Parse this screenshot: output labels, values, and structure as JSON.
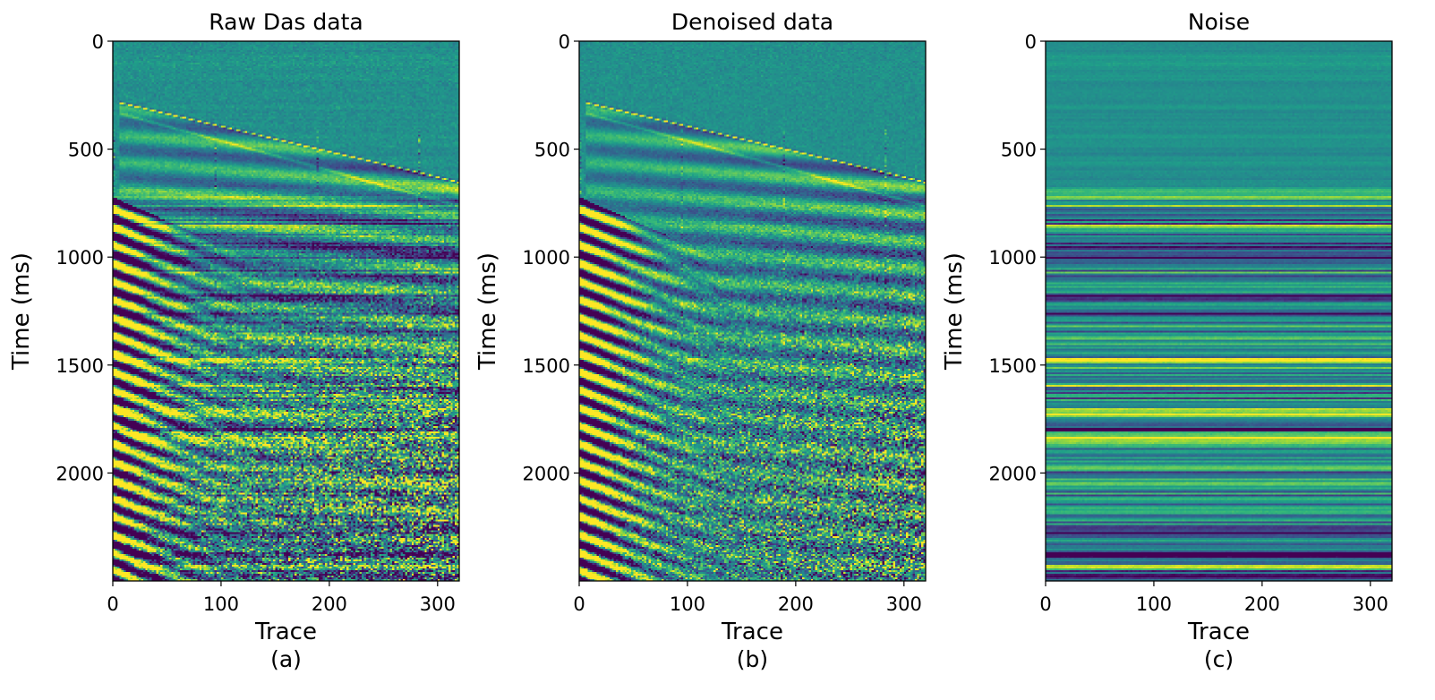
{
  "chart_data": [
    {
      "type": "heatmap",
      "title": "Raw Das data",
      "xlabel": "Trace",
      "ylabel": "Time (ms)",
      "caption": "(a)",
      "xlim": [
        0,
        320
      ],
      "ylim": [
        2500,
        0
      ],
      "x_ticks": [
        0,
        100,
        200,
        300
      ],
      "y_ticks": [
        0,
        500,
        1000,
        1500,
        2000
      ],
      "colormap": "viridis",
      "color_range": [
        -1,
        1
      ],
      "content": "seismic",
      "events": [
        {
          "kind": "direct-arrival",
          "trace": [
            5,
            320
          ],
          "time_ms": [
            280,
            650
          ]
        },
        {
          "kind": "weak-arrival",
          "trace": [
            5,
            320
          ],
          "time_ms": [
            330,
            760
          ]
        },
        {
          "kind": "surface-waves",
          "trace": [
            0,
            60
          ],
          "time_ms": [
            720,
            2500
          ]
        }
      ],
      "noise_level": 0.9,
      "horizontal_noise": 0.35
    },
    {
      "type": "heatmap",
      "title": "Denoised data",
      "xlabel": "Trace",
      "ylabel": "Time (ms)",
      "caption": "(b)",
      "xlim": [
        0,
        320
      ],
      "ylim": [
        2500,
        0
      ],
      "x_ticks": [
        0,
        100,
        200,
        300
      ],
      "y_ticks": [
        0,
        500,
        1000,
        1500,
        2000
      ],
      "colormap": "viridis",
      "color_range": [
        -1,
        1
      ],
      "content": "seismic",
      "events": [
        {
          "kind": "direct-arrival",
          "trace": [
            5,
            320
          ],
          "time_ms": [
            280,
            650
          ]
        },
        {
          "kind": "weak-arrival",
          "trace": [
            5,
            320
          ],
          "time_ms": [
            330,
            760
          ]
        },
        {
          "kind": "surface-waves",
          "trace": [
            0,
            60
          ],
          "time_ms": [
            720,
            2500
          ]
        }
      ],
      "noise_level": 0.8,
      "horizontal_noise": 0.05
    },
    {
      "type": "heatmap",
      "title": "Noise",
      "xlabel": "Trace",
      "ylabel": "Time (ms)",
      "caption": "(c)",
      "xlim": [
        0,
        320
      ],
      "ylim": [
        2500,
        0
      ],
      "x_ticks": [
        0,
        100,
        200,
        300
      ],
      "y_ticks": [
        0,
        500,
        1000,
        1500,
        2000
      ],
      "colormap": "viridis",
      "color_range": [
        -1,
        1
      ],
      "content": "horizontal-noise",
      "noise_onset_ms": 650
    }
  ]
}
